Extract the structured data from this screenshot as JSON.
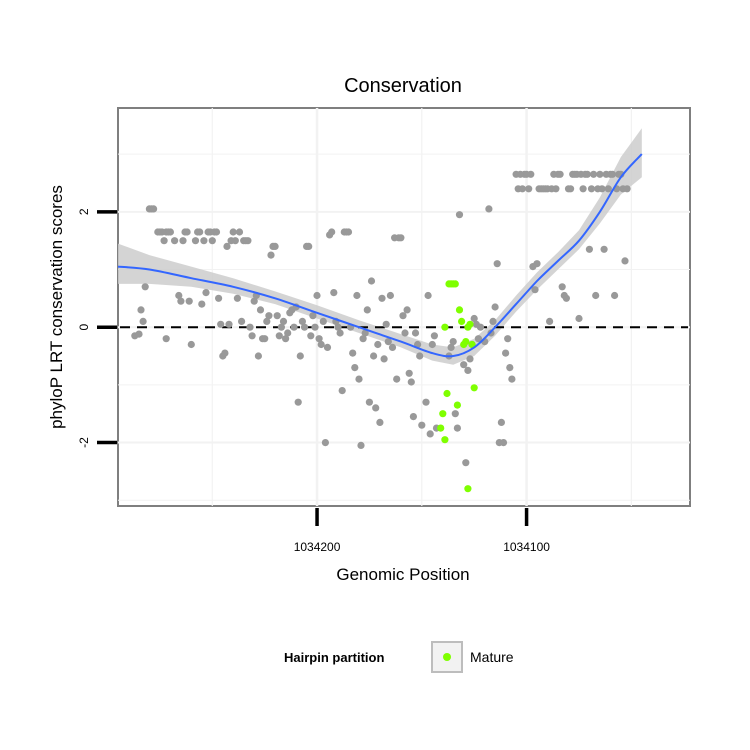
{
  "chart_data": {
    "type": "scatter",
    "title": "Conservation",
    "xlabel": "Genomic Position",
    "ylabel": "phyloP LRT conservation scores",
    "x_reversed": true,
    "xlim": [
      1034295,
      1034022
    ],
    "ylim": [
      -3.1,
      3.8
    ],
    "x_ticks": [
      1034200,
      1034100
    ],
    "x_tick_labels": [
      "1034200",
      "1034100"
    ],
    "y_ticks": [
      2,
      0,
      -2
    ],
    "y_tick_labels": [
      "2",
      "0",
      "-2"
    ],
    "grid": true,
    "reference_line": {
      "y": 0,
      "style": "dashed"
    },
    "legend": {
      "title": "Hairpin partition",
      "position": "bottom",
      "entries": [
        {
          "label": "Mature",
          "color": "#7fff00"
        }
      ]
    },
    "colors": {
      "other": "#999999",
      "mature": "#7fff00",
      "smooth": "#3366ff",
      "band": "#cccccc"
    },
    "series": [
      {
        "key": "other",
        "color": "#999999",
        "points": [
          [
            1034287,
            -0.15
          ],
          [
            1034285,
            -0.12
          ],
          [
            1034284,
            0.3
          ],
          [
            1034283,
            0.1
          ],
          [
            1034282,
            0.7
          ],
          [
            1034280,
            2.05
          ],
          [
            1034279,
            2.05
          ],
          [
            1034278,
            2.05
          ],
          [
            1034276,
            1.65
          ],
          [
            1034275,
            1.65
          ],
          [
            1034274,
            1.65
          ],
          [
            1034273,
            1.5
          ],
          [
            1034272,
            1.65
          ],
          [
            1034271,
            1.65
          ],
          [
            1034270,
            1.65
          ],
          [
            1034272,
            -0.2
          ],
          [
            1034268,
            1.5
          ],
          [
            1034266,
            0.55
          ],
          [
            1034265,
            0.45
          ],
          [
            1034264,
            1.5
          ],
          [
            1034263,
            1.65
          ],
          [
            1034262,
            1.65
          ],
          [
            1034261,
            0.45
          ],
          [
            1034260,
            -0.3
          ],
          [
            1034258,
            1.5
          ],
          [
            1034257,
            1.65
          ],
          [
            1034256,
            1.65
          ],
          [
            1034255,
            0.4
          ],
          [
            1034254,
            1.5
          ],
          [
            1034253,
            0.6
          ],
          [
            1034252,
            1.65
          ],
          [
            1034251,
            1.65
          ],
          [
            1034250,
            1.5
          ],
          [
            1034249,
            1.65
          ],
          [
            1034248,
            1.65
          ],
          [
            1034247,
            0.5
          ],
          [
            1034246,
            0.05
          ],
          [
            1034245,
            -0.5
          ],
          [
            1034244,
            -0.45
          ],
          [
            1034243,
            1.4
          ],
          [
            1034242,
            0.05
          ],
          [
            1034241,
            1.5
          ],
          [
            1034240,
            1.65
          ],
          [
            1034239,
            1.5
          ],
          [
            1034238,
            0.5
          ],
          [
            1034237,
            1.65
          ],
          [
            1034236,
            0.1
          ],
          [
            1034235,
            1.5
          ],
          [
            1034234,
            1.5
          ],
          [
            1034233,
            1.5
          ],
          [
            1034232,
            0.0
          ],
          [
            1034231,
            -0.15
          ],
          [
            1034230,
            0.45
          ],
          [
            1034229,
            0.55
          ],
          [
            1034228,
            -0.5
          ],
          [
            1034227,
            0.3
          ],
          [
            1034226,
            -0.2
          ],
          [
            1034225,
            -0.2
          ],
          [
            1034224,
            0.1
          ],
          [
            1034223,
            0.2
          ],
          [
            1034222,
            1.25
          ],
          [
            1034221,
            1.4
          ],
          [
            1034220,
            1.4
          ],
          [
            1034219,
            0.2
          ],
          [
            1034218,
            -0.15
          ],
          [
            1034217,
            0.0
          ],
          [
            1034216,
            0.1
          ],
          [
            1034215,
            -0.2
          ],
          [
            1034214,
            -0.1
          ],
          [
            1034213,
            0.25
          ],
          [
            1034212,
            0.3
          ],
          [
            1034211,
            0.0
          ],
          [
            1034210,
            0.35
          ],
          [
            1034209,
            -1.3
          ],
          [
            1034208,
            -0.5
          ],
          [
            1034207,
            0.1
          ],
          [
            1034206,
            0.0
          ],
          [
            1034205,
            1.4
          ],
          [
            1034204,
            1.4
          ],
          [
            1034203,
            -0.15
          ],
          [
            1034202,
            0.2
          ],
          [
            1034201,
            0.0
          ],
          [
            1034200,
            0.55
          ],
          [
            1034199,
            -0.2
          ],
          [
            1034198,
            -0.3
          ],
          [
            1034197,
            0.1
          ],
          [
            1034196,
            -2.0
          ],
          [
            1034195,
            -0.35
          ],
          [
            1034194,
            1.6
          ],
          [
            1034193,
            1.65
          ],
          [
            1034192,
            0.6
          ],
          [
            1034191,
            0.1
          ],
          [
            1034190,
            0.0
          ],
          [
            1034189,
            -0.1
          ],
          [
            1034188,
            -1.1
          ],
          [
            1034187,
            1.65
          ],
          [
            1034186,
            1.65
          ],
          [
            1034185,
            1.65
          ],
          [
            1034184,
            0.0
          ],
          [
            1034183,
            -0.45
          ],
          [
            1034182,
            -0.7
          ],
          [
            1034181,
            0.55
          ],
          [
            1034180,
            -0.9
          ],
          [
            1034179,
            -2.05
          ],
          [
            1034178,
            -0.2
          ],
          [
            1034177,
            -0.1
          ],
          [
            1034176,
            0.3
          ],
          [
            1034175,
            -1.3
          ],
          [
            1034174,
            0.8
          ],
          [
            1034173,
            -0.5
          ],
          [
            1034172,
            -1.4
          ],
          [
            1034171,
            -0.3
          ],
          [
            1034170,
            -1.65
          ],
          [
            1034169,
            0.5
          ],
          [
            1034168,
            -0.55
          ],
          [
            1034167,
            0.05
          ],
          [
            1034166,
            -0.25
          ],
          [
            1034165,
            0.55
          ],
          [
            1034164,
            -0.35
          ],
          [
            1034163,
            1.55
          ],
          [
            1034162,
            -0.9
          ],
          [
            1034161,
            1.55
          ],
          [
            1034160,
            1.55
          ],
          [
            1034159,
            0.2
          ],
          [
            1034158,
            -0.1
          ],
          [
            1034157,
            0.3
          ],
          [
            1034156,
            -0.8
          ],
          [
            1034155,
            -0.95
          ],
          [
            1034154,
            -1.55
          ],
          [
            1034153,
            -0.1
          ],
          [
            1034152,
            -0.3
          ],
          [
            1034151,
            -0.5
          ],
          [
            1034150,
            -1.7
          ],
          [
            1034148,
            -1.3
          ],
          [
            1034147,
            0.55
          ],
          [
            1034146,
            -1.85
          ],
          [
            1034145,
            -0.3
          ],
          [
            1034144,
            -0.15
          ],
          [
            1034143,
            -1.75
          ],
          [
            1034137,
            -0.5
          ],
          [
            1034136,
            -0.35
          ],
          [
            1034135,
            -0.25
          ],
          [
            1034134,
            -1.5
          ],
          [
            1034133,
            -1.75
          ],
          [
            1034132,
            1.95
          ],
          [
            1034130,
            -0.65
          ],
          [
            1034129,
            -2.35
          ],
          [
            1034128,
            -0.75
          ],
          [
            1034127,
            -0.55
          ],
          [
            1034126,
            -0.3
          ],
          [
            1034125,
            0.15
          ],
          [
            1034124,
            0.05
          ],
          [
            1034123,
            -0.2
          ],
          [
            1034122,
            0.0
          ],
          [
            1034120,
            -0.25
          ],
          [
            1034118,
            2.05
          ],
          [
            1034117,
            -0.1
          ],
          [
            1034116,
            0.1
          ],
          [
            1034115,
            0.35
          ],
          [
            1034114,
            1.1
          ],
          [
            1034113,
            -2.0
          ],
          [
            1034112,
            -1.65
          ],
          [
            1034111,
            -2.0
          ],
          [
            1034110,
            -0.45
          ],
          [
            1034109,
            -0.2
          ],
          [
            1034108,
            -0.7
          ],
          [
            1034107,
            -0.9
          ],
          [
            1034105,
            2.65
          ],
          [
            1034104,
            2.4
          ],
          [
            1034103,
            2.65
          ],
          [
            1034102,
            2.4
          ],
          [
            1034101,
            2.65
          ],
          [
            1034100,
            2.65
          ],
          [
            1034099,
            2.4
          ],
          [
            1034098,
            2.65
          ],
          [
            1034097,
            1.05
          ],
          [
            1034096,
            0.65
          ],
          [
            1034095,
            1.1
          ],
          [
            1034094,
            2.4
          ],
          [
            1034093,
            2.4
          ],
          [
            1034092,
            2.4
          ],
          [
            1034091,
            2.4
          ],
          [
            1034090,
            2.4
          ],
          [
            1034089,
            0.1
          ],
          [
            1034088,
            2.4
          ],
          [
            1034087,
            2.65
          ],
          [
            1034086,
            2.4
          ],
          [
            1034085,
            2.65
          ],
          [
            1034084,
            2.65
          ],
          [
            1034083,
            0.7
          ],
          [
            1034082,
            0.55
          ],
          [
            1034081,
            0.5
          ],
          [
            1034080,
            2.4
          ],
          [
            1034079,
            2.4
          ],
          [
            1034078,
            2.65
          ],
          [
            1034077,
            2.65
          ],
          [
            1034076,
            2.65
          ],
          [
            1034075,
            0.15
          ],
          [
            1034074,
            2.65
          ],
          [
            1034073,
            2.4
          ],
          [
            1034072,
            2.65
          ],
          [
            1034071,
            2.65
          ],
          [
            1034070,
            1.35
          ],
          [
            1034069,
            2.4
          ],
          [
            1034068,
            2.65
          ],
          [
            1034067,
            0.55
          ],
          [
            1034066,
            2.4
          ],
          [
            1034065,
            2.65
          ],
          [
            1034064,
            2.4
          ],
          [
            1034063,
            1.35
          ],
          [
            1034062,
            2.65
          ],
          [
            1034061,
            2.4
          ],
          [
            1034060,
            2.65
          ],
          [
            1034059,
            2.65
          ],
          [
            1034058,
            0.55
          ],
          [
            1034057,
            2.4
          ],
          [
            1034056,
            2.65
          ],
          [
            1034055,
            2.65
          ],
          [
            1034054,
            2.4
          ],
          [
            1034053,
            1.15
          ],
          [
            1034052,
            2.4
          ]
        ]
      },
      {
        "key": "mature",
        "name": "Mature",
        "color": "#7fff00",
        "points": [
          [
            1034141,
            -1.75
          ],
          [
            1034140,
            -1.5
          ],
          [
            1034139,
            -1.95
          ],
          [
            1034139,
            0.0
          ],
          [
            1034138,
            -1.15
          ],
          [
            1034137,
            0.75
          ],
          [
            1034136,
            0.75
          ],
          [
            1034135,
            0.75
          ],
          [
            1034134,
            0.75
          ],
          [
            1034133,
            -1.35
          ],
          [
            1034132,
            0.3
          ],
          [
            1034131,
            0.1
          ],
          [
            1034130,
            -0.3
          ],
          [
            1034129,
            -0.25
          ],
          [
            1034128,
            -2.8
          ],
          [
            1034128,
            0.0
          ],
          [
            1034127,
            0.05
          ],
          [
            1034126,
            -0.3
          ],
          [
            1034125,
            -1.05
          ]
        ]
      }
    ],
    "smooth": [
      [
        1034295,
        1.05
      ],
      [
        1034280,
        1.0
      ],
      [
        1034260,
        0.85
      ],
      [
        1034240,
        0.7
      ],
      [
        1034220,
        0.5
      ],
      [
        1034200,
        0.25
      ],
      [
        1034180,
        0.0
      ],
      [
        1034160,
        -0.25
      ],
      [
        1034145,
        -0.45
      ],
      [
        1034135,
        -0.5
      ],
      [
        1034125,
        -0.35
      ],
      [
        1034115,
        0.0
      ],
      [
        1034105,
        0.4
      ],
      [
        1034095,
        0.8
      ],
      [
        1034085,
        1.15
      ],
      [
        1034075,
        1.5
      ],
      [
        1034065,
        2.0
      ],
      [
        1034055,
        2.6
      ],
      [
        1034045,
        3.0
      ]
    ],
    "smooth_band": [
      [
        1034295,
        0.75,
        1.45
      ],
      [
        1034280,
        0.75,
        1.25
      ],
      [
        1034260,
        0.7,
        1.05
      ],
      [
        1034240,
        0.58,
        0.85
      ],
      [
        1034220,
        0.4,
        0.62
      ],
      [
        1034200,
        0.15,
        0.38
      ],
      [
        1034180,
        -0.1,
        0.12
      ],
      [
        1034160,
        -0.35,
        -0.12
      ],
      [
        1034145,
        -0.58,
        -0.3
      ],
      [
        1034135,
        -0.65,
        -0.35
      ],
      [
        1034125,
        -0.5,
        -0.2
      ],
      [
        1034115,
        -0.15,
        0.12
      ],
      [
        1034105,
        0.27,
        0.55
      ],
      [
        1034095,
        0.65,
        0.95
      ],
      [
        1034085,
        1.0,
        1.3
      ],
      [
        1034075,
        1.35,
        1.68
      ],
      [
        1034065,
        1.8,
        2.25
      ],
      [
        1034055,
        2.3,
        2.95
      ],
      [
        1034045,
        2.6,
        3.45
      ]
    ]
  }
}
